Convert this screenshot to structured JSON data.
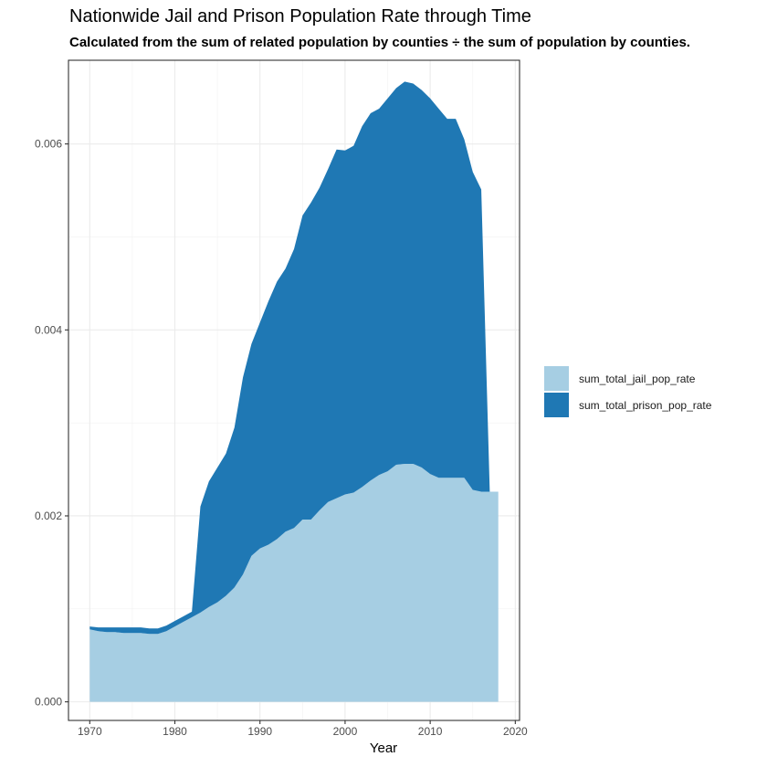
{
  "chart_data": {
    "type": "area",
    "stacked": true,
    "title": "Nationwide Jail and Prison Population Rate through Time",
    "subtitle": "Calculated from the sum of related population by counties ÷ the sum of population by counties.",
    "xlabel": "Year",
    "ylabel": "",
    "xlim": [
      1967.5,
      2020.5
    ],
    "ylim": [
      -0.0002,
      0.0069
    ],
    "x_ticks": [
      1970,
      1980,
      1990,
      2000,
      2010,
      2020
    ],
    "y_ticks": [
      0.0,
      0.002,
      0.004,
      0.006
    ],
    "x_tick_labels": [
      "1970",
      "1980",
      "1990",
      "2000",
      "2010",
      "2020"
    ],
    "y_tick_labels": [
      "0.000",
      "0.002",
      "0.004",
      "0.006"
    ],
    "grid": true,
    "legend_position": "right",
    "x": [
      1970,
      1971,
      1972,
      1973,
      1974,
      1975,
      1976,
      1977,
      1978,
      1979,
      1980,
      1981,
      1982,
      1983,
      1984,
      1985,
      1986,
      1987,
      1988,
      1989,
      1990,
      1991,
      1992,
      1993,
      1994,
      1995,
      1996,
      1997,
      1998,
      1999,
      2000,
      2001,
      2002,
      2003,
      2004,
      2005,
      2006,
      2007,
      2008,
      2009,
      2010,
      2011,
      2012,
      2013,
      2014,
      2015,
      2016,
      2017,
      2018
    ],
    "series": [
      {
        "name": "sum_total_jail_pop_rate",
        "color": "#a6cee3",
        "values": [
          0.00078,
          0.00076,
          0.00075,
          0.00075,
          0.00074,
          0.00074,
          0.00074,
          0.00073,
          0.00073,
          0.00076,
          0.00081,
          0.00086,
          0.00091,
          0.00096,
          0.00102,
          0.00107,
          0.00114,
          0.00123,
          0.00137,
          0.00157,
          0.00165,
          0.00169,
          0.00175,
          0.00183,
          0.00187,
          0.00196,
          0.00196,
          0.00206,
          0.00215,
          0.00219,
          0.00223,
          0.00225,
          0.00231,
          0.00238,
          0.00244,
          0.00248,
          0.00255,
          0.00256,
          0.00256,
          0.00252,
          0.00245,
          0.00241,
          0.00241,
          0.00241,
          0.00241,
          0.00228,
          0.00226,
          0.00226,
          0.00226
        ]
      },
      {
        "name": "sum_total_prison_pop_rate",
        "color": "#1f78b4",
        "values": [
          3e-05,
          4e-05,
          5e-05,
          5e-05,
          6e-05,
          6e-05,
          6e-05,
          6e-05,
          6e-05,
          6e-05,
          6e-05,
          6e-05,
          6e-05,
          0.00114,
          0.00135,
          0.00145,
          0.00153,
          0.00172,
          0.00212,
          0.00228,
          0.00243,
          0.00262,
          0.00277,
          0.00283,
          0.003,
          0.00327,
          0.00341,
          0.00347,
          0.00358,
          0.00375,
          0.0037,
          0.00373,
          0.00388,
          0.00395,
          0.00394,
          0.00401,
          0.00405,
          0.00411,
          0.00409,
          0.00406,
          0.00404,
          0.00397,
          0.00386,
          0.00386,
          0.00364,
          0.00342,
          0.00325,
          0.0,
          0.0
        ]
      }
    ]
  }
}
